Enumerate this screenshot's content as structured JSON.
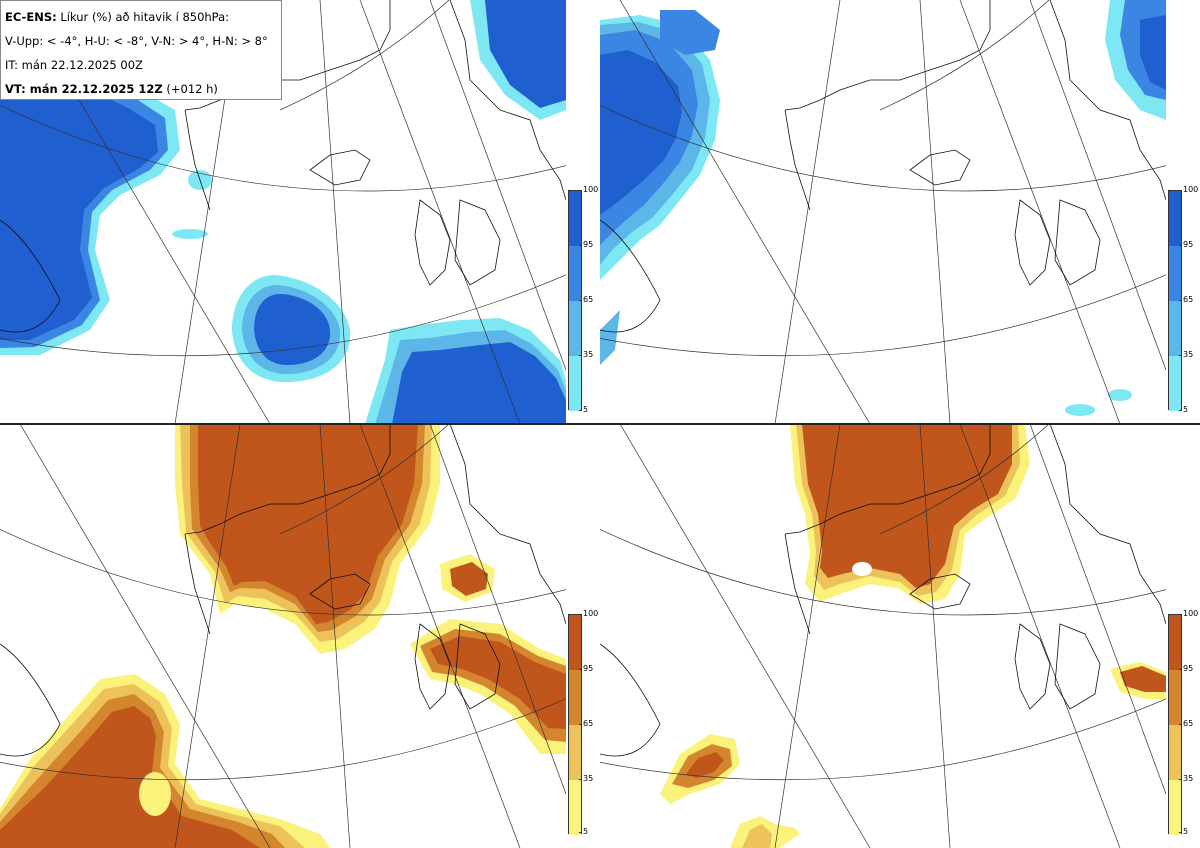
{
  "info_box": {
    "model": "EC-ENS:",
    "title": "Líkur (%) að hitavik í 850hPa:",
    "thresholds": "V-Upp: < -4°, H-U: < -8°, V-N: > 4°, H-N: > 8°",
    "init_time": "IT: mán 22.12.2025 00Z",
    "valid_time": "VT: mán 22.12.2025 12Z",
    "lead_time": "(+012 h)"
  },
  "panels": [
    {
      "id": "top-left",
      "label": "V-Upp",
      "field": "cold",
      "threshold": "< -4°"
    },
    {
      "id": "top-right",
      "label": "H-U",
      "field": "cold",
      "threshold": "< -8°"
    },
    {
      "id": "bottom-left",
      "label": "V-N",
      "field": "warm",
      "threshold": "> 4°"
    },
    {
      "id": "bottom-right",
      "label": "H-N",
      "field": "warm",
      "threshold": "> 8°"
    }
  ],
  "colorbar_cold": {
    "ticks": [
      "100",
      "95",
      "65",
      "35",
      "5"
    ],
    "colors": [
      "#1f5fd0",
      "#3c86e3",
      "#5cb6e8",
      "#7ee7f4"
    ]
  },
  "colorbar_warm": {
    "ticks": [
      "100",
      "95",
      "65",
      "35",
      "5"
    ],
    "colors": [
      "#c0561c",
      "#d4862f",
      "#edc25a",
      "#fbf27b"
    ]
  }
}
